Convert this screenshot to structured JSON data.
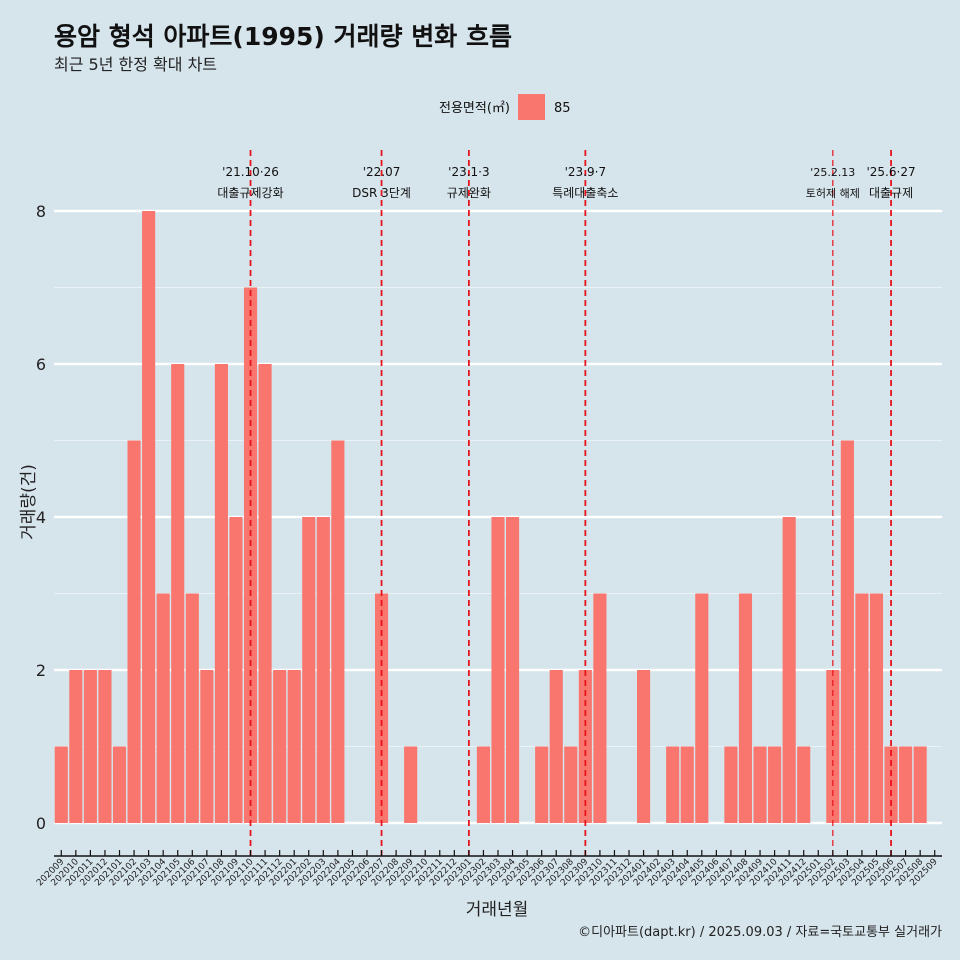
{
  "chart_data": {
    "type": "bar",
    "title": "용암 형석 아파트(1995) 거래량 변화 흐름",
    "subtitle": "최근 5년 한정 확대 차트",
    "xlabel": "거래년월",
    "ylabel": "거래량(건)",
    "ylim": [
      0,
      8
    ],
    "yticks": [
      0,
      2,
      4,
      6,
      8
    ],
    "grid": true,
    "legend": {
      "title": "전용면적(㎡)",
      "position": "top-center",
      "entries": [
        {
          "name": "85",
          "color": "#f8766d"
        }
      ]
    },
    "categories": [
      "202009",
      "202010",
      "202011",
      "202012",
      "202101",
      "202102",
      "202103",
      "202104",
      "202105",
      "202106",
      "202107",
      "202108",
      "202109",
      "202110",
      "202111",
      "202112",
      "202201",
      "202202",
      "202203",
      "202204",
      "202205",
      "202206",
      "202207",
      "202208",
      "202209",
      "202210",
      "202211",
      "202212",
      "202301",
      "202302",
      "202303",
      "202304",
      "202305",
      "202306",
      "202307",
      "202308",
      "202309",
      "202310",
      "202311",
      "202312",
      "202401",
      "202402",
      "202403",
      "202404",
      "202405",
      "202406",
      "202407",
      "202408",
      "202409",
      "202410",
      "202411",
      "202412",
      "202501",
      "202502",
      "202503",
      "202504",
      "202505",
      "202506",
      "202507",
      "202508",
      "202509"
    ],
    "series": [
      {
        "name": "85",
        "color": "#f8766d",
        "values": [
          1,
          2,
          2,
          2,
          1,
          5,
          8,
          3,
          6,
          3,
          2,
          6,
          4,
          7,
          6,
          2,
          2,
          4,
          4,
          5,
          0,
          0,
          3,
          0,
          1,
          0,
          0,
          0,
          0,
          1,
          4,
          4,
          0,
          1,
          2,
          1,
          2,
          3,
          0,
          0,
          2,
          0,
          1,
          1,
          3,
          0,
          1,
          3,
          1,
          1,
          4,
          1,
          0,
          2,
          5,
          3,
          3,
          1,
          1,
          1,
          0
        ]
      }
    ],
    "annotations": [
      {
        "at": "202110",
        "line1": "'21.10·26",
        "line2": "대출규제강화",
        "style": "bold"
      },
      {
        "at": "202207",
        "line1": "'22.07",
        "line2": "DSR 3단계",
        "style": "bold"
      },
      {
        "at": "202301",
        "line1": "'23.1·3",
        "line2": "규제완화",
        "style": "bold"
      },
      {
        "at": "202309",
        "line1": "'23.9·7",
        "line2": "특례대출축소",
        "style": "bold"
      },
      {
        "at": "202502",
        "line1": "'25.2.13",
        "line2": "토허제 해제",
        "style": "thin"
      },
      {
        "at": "202506",
        "line1": "'25.6·27",
        "line2": "대출규제",
        "style": "bold"
      }
    ],
    "caption": "©디아파트(dapt.kr) / 2025.09.03 / 자료=국토교통부 실거래가"
  }
}
